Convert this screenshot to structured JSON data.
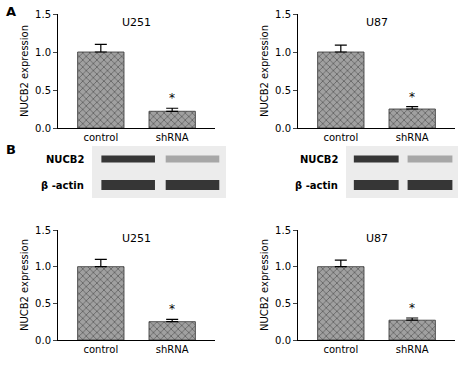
{
  "panel_labels": [
    "A",
    "B"
  ],
  "blots": [
    {
      "bands": [
        "NUCB2",
        "β -actin"
      ]
    },
    {
      "bands": [
        "NUCB2",
        "β -actin"
      ]
    }
  ],
  "chart_data": [
    {
      "type": "bar",
      "title": "U251",
      "y_label": "NUCB2 expression",
      "categories": [
        "control",
        "shRNA"
      ],
      "values": [
        1.0,
        0.22
      ],
      "errors": [
        0.1,
        0.04
      ],
      "color": "#a0a0a0",
      "ylim": [
        0,
        1.5
      ],
      "yticks": [
        {
          "value": 0,
          "label": "0.0"
        },
        {
          "value": 0.5,
          "label": "0.5"
        },
        {
          "value": 1,
          "label": "1.0"
        },
        {
          "value": 1.5,
          "label": "1.5"
        }
      ],
      "annotations": [
        {
          "x": "shRNA",
          "text": "*"
        }
      ]
    },
    {
      "type": "bar",
      "title": "U87",
      "y_label": "NUCB2 expression",
      "categories": [
        "control",
        "shRNA"
      ],
      "values": [
        1.0,
        0.25
      ],
      "errors": [
        0.09,
        0.03
      ],
      "color": "#a0a0a0",
      "ylim": [
        0,
        1.5
      ],
      "yticks": [
        {
          "value": 0,
          "label": "0.0"
        },
        {
          "value": 0.5,
          "label": "0.5"
        },
        {
          "value": 1,
          "label": "1.0"
        },
        {
          "value": 1.5,
          "label": "1.5"
        }
      ],
      "annotations": [
        {
          "x": "shRNA",
          "text": "*"
        }
      ]
    },
    {
      "type": "bar",
      "title": "U251",
      "y_label": "NUCB2 expression",
      "categories": [
        "control",
        "shRNA"
      ],
      "values": [
        1.0,
        0.25
      ],
      "errors": [
        0.1,
        0.03
      ],
      "color": "#a0a0a0",
      "ylim": [
        0,
        1.5
      ],
      "yticks": [
        {
          "value": 0,
          "label": "0.0"
        },
        {
          "value": 0.5,
          "label": "0.5"
        },
        {
          "value": 1,
          "label": "1.0"
        },
        {
          "value": 1.5,
          "label": "1.5"
        }
      ],
      "annotations": [
        {
          "x": "shRNA",
          "text": "*"
        }
      ]
    },
    {
      "type": "bar",
      "title": "U87",
      "y_label": "NUCB2 expression",
      "categories": [
        "control",
        "shRNA"
      ],
      "values": [
        1.0,
        0.27
      ],
      "errors": [
        0.09,
        0.03
      ],
      "color": "#a0a0a0",
      "ylim": [
        0,
        1.5
      ],
      "yticks": [
        {
          "value": 0,
          "label": "0.0"
        },
        {
          "value": 0.5,
          "label": "0.5"
        },
        {
          "value": 1,
          "label": "1.0"
        },
        {
          "value": 1.5,
          "label": "1.5"
        }
      ],
      "annotations": [
        {
          "x": "shRNA",
          "text": "*"
        }
      ]
    }
  ]
}
